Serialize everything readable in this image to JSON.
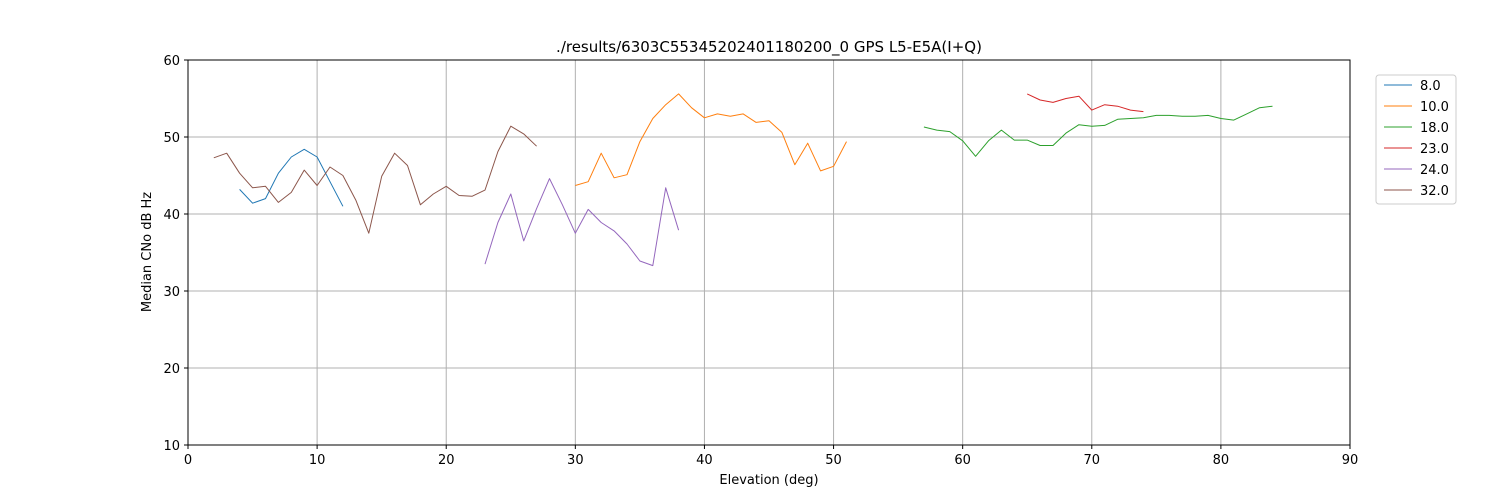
{
  "chart_data": {
    "type": "line",
    "title": "./results/6303C55345202401180200_0 GPS L5-E5A(I+Q)",
    "xlabel": "Elevation (deg)",
    "ylabel": "Median CNo dB Hz",
    "xlim": [
      0,
      90
    ],
    "ylim": [
      10,
      60
    ],
    "xticks": [
      0,
      10,
      20,
      30,
      40,
      50,
      60,
      70,
      80,
      90
    ],
    "yticks": [
      10,
      20,
      30,
      40,
      50,
      60
    ],
    "grid": true,
    "legend_position": "upper-right-outside",
    "series": [
      {
        "name": "8.0",
        "color": "#1f77b4",
        "x": [
          4,
          5,
          6,
          7,
          8,
          9,
          10,
          11,
          12
        ],
        "y": [
          43.2,
          41.4,
          42.0,
          45.3,
          47.4,
          48.4,
          47.4,
          44.2,
          41.0
        ]
      },
      {
        "name": "10.0",
        "color": "#ff7f0e",
        "x": [
          30,
          31,
          32,
          33,
          34,
          35,
          36,
          37,
          38,
          39,
          40,
          41,
          42,
          43,
          44,
          45,
          46,
          47,
          48,
          49,
          50,
          51
        ],
        "y": [
          43.7,
          44.2,
          47.9,
          44.7,
          45.1,
          49.4,
          52.4,
          54.2,
          55.6,
          53.8,
          52.5,
          53.0,
          52.7,
          53.0,
          51.9,
          52.1,
          50.6,
          46.4,
          49.2,
          45.6,
          46.2,
          49.4
        ]
      },
      {
        "name": "18.0",
        "color": "#2ca02c",
        "x": [
          57,
          58,
          59,
          60,
          61,
          62,
          63,
          64,
          65,
          66,
          67,
          68,
          69,
          70,
          71,
          72,
          73,
          74,
          75,
          76,
          77,
          78,
          79,
          80,
          81,
          82,
          83,
          84
        ],
        "y": [
          51.3,
          50.9,
          50.7,
          49.5,
          47.5,
          49.5,
          50.9,
          49.6,
          49.6,
          48.9,
          48.9,
          50.5,
          51.6,
          51.4,
          51.5,
          52.3,
          52.4,
          52.5,
          52.8,
          52.8,
          52.7,
          52.7,
          52.8,
          52.4,
          52.2,
          53.0,
          53.8,
          54.0
        ]
      },
      {
        "name": "23.0",
        "color": "#d62728",
        "x": [
          65,
          66,
          67,
          68,
          69,
          70,
          71,
          72,
          73,
          74
        ],
        "y": [
          55.6,
          54.8,
          54.5,
          55.0,
          55.3,
          53.5,
          54.2,
          54.0,
          53.5,
          53.3
        ]
      },
      {
        "name": "24.0",
        "color": "#9467bd",
        "x": [
          23,
          24,
          25,
          26,
          27,
          28,
          29,
          30,
          31,
          32,
          33,
          34,
          35,
          36,
          37,
          38
        ],
        "y": [
          33.5,
          38.9,
          42.6,
          36.5,
          40.7,
          44.6,
          41.2,
          37.5,
          40.6,
          38.9,
          37.8,
          36.1,
          33.9,
          33.3,
          43.4,
          37.9
        ]
      },
      {
        "name": "32.0",
        "color": "#8c564b",
        "x": [
          2,
          3,
          4,
          5,
          6,
          7,
          8,
          9,
          10,
          11,
          12,
          13,
          14,
          15,
          16,
          17,
          18,
          19,
          20,
          21,
          22,
          23,
          24,
          25,
          26,
          27
        ],
        "y": [
          47.3,
          47.9,
          45.3,
          43.4,
          43.6,
          41.5,
          42.8,
          45.7,
          43.7,
          46.1,
          45.0,
          41.8,
          37.5,
          44.9,
          47.9,
          46.3,
          41.2,
          42.6,
          43.6,
          42.4,
          42.3,
          43.1,
          48.1,
          51.4,
          50.4,
          48.8
        ]
      }
    ]
  }
}
